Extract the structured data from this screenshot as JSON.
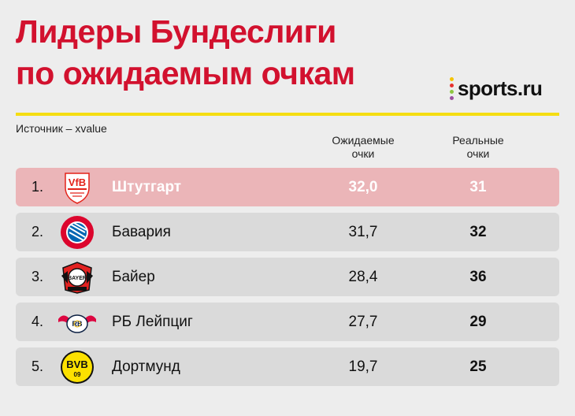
{
  "header": {
    "title_line1": "Лидеры Бундеслиги",
    "title_line2": "по ожидаемым очкам",
    "brand": "sports.ru",
    "source": "Источник – xvalue"
  },
  "columns": {
    "expected": "Ожидаемые\nочки",
    "actual": "Реальные\nочки"
  },
  "colors": {
    "title": "#d2112e",
    "rule": "#f5dd12",
    "highlight_row": "#ebb5b8",
    "row": "#dadada",
    "brand_dots": [
      "#f5c400",
      "#e6302e",
      "#8ec63f",
      "#9b4fa0"
    ]
  },
  "chart_data": {
    "type": "table",
    "title": "Лидеры Бундеслиги по ожидаемым очкам",
    "columns": [
      "",
      "",
      "Ожидаемые очки",
      "Реальные очки"
    ],
    "rows": [
      {
        "rank": "1.",
        "team": "Штутгарт",
        "logo": "vfb-stuttgart-crest-icon",
        "expected": "32,0",
        "actual": "31",
        "highlight": true
      },
      {
        "rank": "2.",
        "team": "Бавария",
        "logo": "bayern-munchen-crest-icon",
        "expected": "31,7",
        "actual": "32"
      },
      {
        "rank": "3.",
        "team": "Байер",
        "logo": "bayer-leverkusen-crest-icon",
        "expected": "28,4",
        "actual": "36"
      },
      {
        "rank": "4.",
        "team": "РБ Лейпциг",
        "logo": "rb-leipzig-crest-icon",
        "expected": "27,7",
        "actual": "29"
      },
      {
        "rank": "5.",
        "team": "Дортмунд",
        "logo": "bvb-dortmund-crest-icon",
        "expected": "19,7",
        "actual": "25"
      }
    ]
  }
}
